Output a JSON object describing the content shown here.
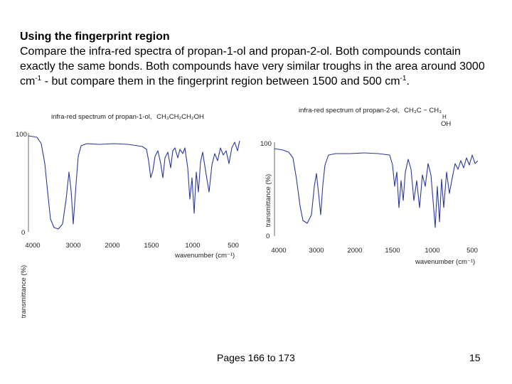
{
  "heading": "Using the fingerprint region",
  "body": {
    "part1": "Compare the infra-red spectra of propan-1-ol and propan-2-ol. Both compounds contain exactly the same bonds. Both compounds have very similar troughs in the area around 3000 cm",
    "sup1": "-1",
    "part2": " - but compare them in the fingerprint region between 1500 and 500 cm",
    "sup2": "-1",
    "part3": "."
  },
  "spectrum1": {
    "title": "infra-red spectrum of propan-1-ol,",
    "formula": "CH₃CH₂CH₂OH",
    "ylabel": "transmittance (%)",
    "xlabel": "wavenumber (cm⁻¹)",
    "y_top": "100",
    "y_bottom": "0",
    "x_ticks": [
      "4000",
      "3000",
      "2000",
      "1500",
      "1000",
      "500"
    ],
    "line_color": "#2b3a9a"
  },
  "spectrum2": {
    "title": "infra-red spectrum of propan-2-ol,",
    "formula": "CH₃C − CH₃",
    "formula_h": "H",
    "formula_oh": "OH",
    "ylabel": "transmittance (%)",
    "xlabel": "wavenumber (cm⁻¹)",
    "y_top": "100",
    "y_bottom": "0",
    "x_ticks": [
      "4000",
      "3000",
      "2000",
      "1500",
      "1000",
      "500"
    ],
    "line_color": "#2b3a9a"
  },
  "footer": {
    "pages": "Pages 166 to 173",
    "slide_number": "15"
  }
}
